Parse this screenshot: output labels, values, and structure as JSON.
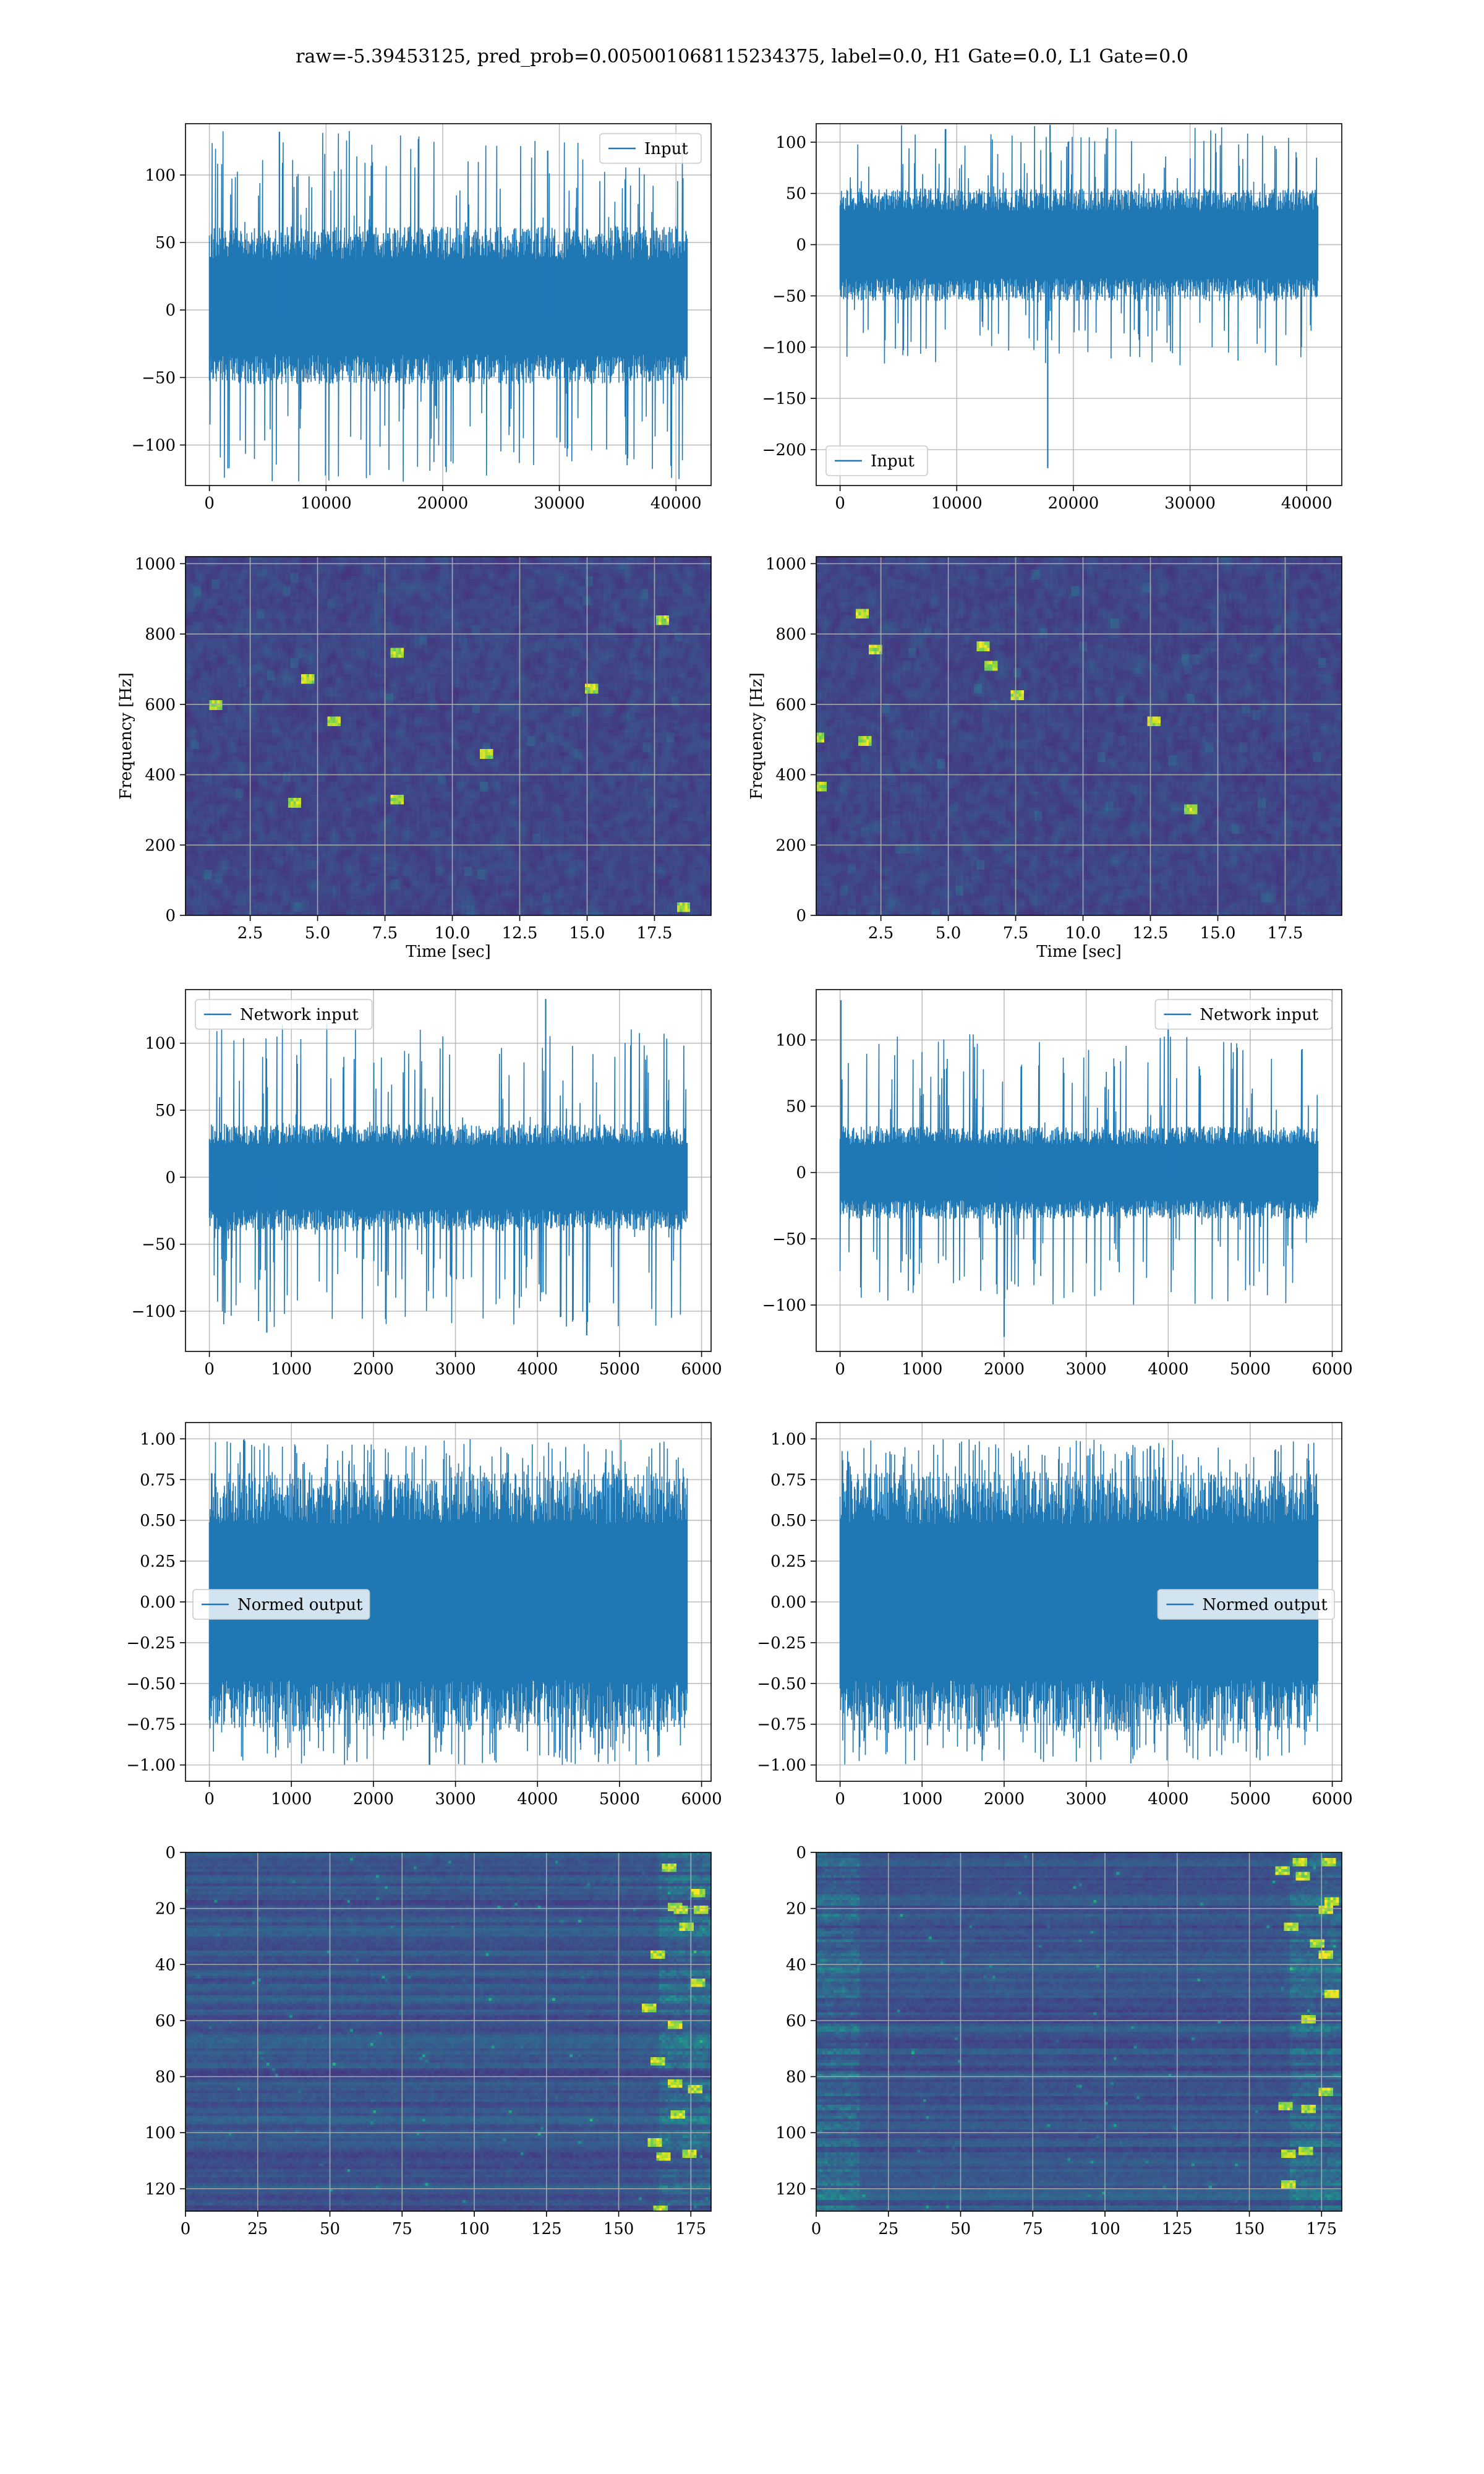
{
  "title": "raw=-5.39453125, pred_prob=0.005001068115234375, label=0.0, H1 Gate=0.0, L1 Gate=0.0",
  "colors": {
    "series": "#1f77b4",
    "grid": "#b0b0b0"
  },
  "chart_data": [
    {
      "id": "ts-h1-input",
      "type": "line",
      "series_name": "Input",
      "legend": "upper right",
      "xlim": [
        -2048,
        43008
      ],
      "ylim": [
        -130,
        138
      ],
      "xticks": [
        0,
        10000,
        20000,
        30000,
        40000
      ],
      "yticks": [
        -100,
        -50,
        0,
        50,
        100
      ],
      "xticklabels": [
        "0",
        "10000",
        "20000",
        "30000",
        "40000"
      ],
      "yticklabels": [
        "−100",
        "−50",
        "0",
        "50",
        "100"
      ],
      "x_range": [
        0,
        40960
      ],
      "core_range": [
        -55,
        62
      ],
      "peak_range": [
        -128,
        133
      ],
      "notable_peaks": [
        {
          "x": 6000,
          "y": 132
        },
        {
          "x": 29000,
          "y": 118
        }
      ],
      "grid": true
    },
    {
      "id": "ts-l1-input",
      "type": "line",
      "series_name": "Input",
      "legend": "lower left",
      "xlim": [
        -2048,
        43008
      ],
      "ylim": [
        -235,
        118
      ],
      "xticks": [
        0,
        10000,
        20000,
        30000,
        40000
      ],
      "yticks": [
        -200,
        -150,
        -100,
        -50,
        0,
        50,
        100
      ],
      "xticklabels": [
        "0",
        "10000",
        "20000",
        "30000",
        "40000"
      ],
      "yticklabels": [
        "−200",
        "−150",
        "−100",
        "−50",
        "0",
        "50",
        "100"
      ],
      "x_range": [
        0,
        40960
      ],
      "core_range": [
        -55,
        55
      ],
      "peak_range": [
        -118,
        118
      ],
      "notable_peaks": [
        {
          "x": 17800,
          "y": -218
        },
        {
          "x": 18000,
          "y": 117
        }
      ],
      "grid": true
    },
    {
      "id": "spec-h1",
      "type": "heatmap",
      "xlim": [
        0.1,
        19.6
      ],
      "ylim": [
        0,
        1020
      ],
      "xticks": [
        2.5,
        5,
        7.5,
        10,
        12.5,
        15,
        17.5
      ],
      "yticks": [
        0,
        200,
        400,
        600,
        800,
        1000
      ],
      "xticklabels": [
        "2.5",
        "5.0",
        "7.5",
        "10.0",
        "12.5",
        "15.0",
        "17.5"
      ],
      "yticklabels": [
        "0",
        "200",
        "400",
        "600",
        "800",
        "1000"
      ],
      "xlabel": "Time [sec]",
      "ylabel": "Frequency [Hz]",
      "colormap": "viridis",
      "grid": true
    },
    {
      "id": "spec-l1",
      "type": "heatmap",
      "xlim": [
        0.1,
        19.6
      ],
      "ylim": [
        0,
        1020
      ],
      "xticks": [
        2.5,
        5,
        7.5,
        10,
        12.5,
        15,
        17.5
      ],
      "yticks": [
        0,
        200,
        400,
        600,
        800,
        1000
      ],
      "xticklabels": [
        "2.5",
        "5.0",
        "7.5",
        "10.0",
        "12.5",
        "15.0",
        "17.5"
      ],
      "yticklabels": [
        "0",
        "200",
        "400",
        "600",
        "800",
        "1000"
      ],
      "xlabel": "Time [sec]",
      "ylabel": "Frequency [Hz]",
      "colormap": "viridis",
      "grid": true
    },
    {
      "id": "ts-h1-net",
      "type": "line",
      "series_name": "Network input",
      "legend": "upper left",
      "xlim": [
        -291,
        6116
      ],
      "ylim": [
        -130,
        140
      ],
      "xticks": [
        0,
        1000,
        2000,
        3000,
        4000,
        5000,
        6000
      ],
      "yticks": [
        -100,
        -50,
        0,
        50,
        100
      ],
      "xticklabels": [
        "0",
        "1000",
        "2000",
        "3000",
        "4000",
        "5000",
        "6000"
      ],
      "yticklabels": [
        "−100",
        "−50",
        "0",
        "50",
        "100"
      ],
      "x_range": [
        0,
        5825
      ],
      "core_range": [
        -40,
        40
      ],
      "peak_range": [
        -112,
        115
      ],
      "notable_peaks": [
        {
          "x": 4100,
          "y": 133
        },
        {
          "x": 4600,
          "y": -118
        },
        {
          "x": 700,
          "y": -116
        }
      ],
      "grid": true
    },
    {
      "id": "ts-l1-net",
      "type": "line",
      "series_name": "Network input",
      "legend": "upper right",
      "xlim": [
        -291,
        6116
      ],
      "ylim": [
        -135,
        138
      ],
      "xticks": [
        0,
        1000,
        2000,
        3000,
        4000,
        5000,
        6000
      ],
      "yticks": [
        -100,
        -50,
        0,
        50,
        100
      ],
      "xticklabels": [
        "0",
        "1000",
        "2000",
        "3000",
        "4000",
        "5000",
        "6000"
      ],
      "yticklabels": [
        "−100",
        "−50",
        "0",
        "50",
        "100"
      ],
      "x_range": [
        0,
        5825
      ],
      "core_range": [
        -35,
        35
      ],
      "peak_range": [
        -100,
        105
      ],
      "notable_peaks": [
        {
          "x": 10,
          "y": 130
        },
        {
          "x": 2000,
          "y": -124
        },
        {
          "x": 4000,
          "y": 113
        }
      ],
      "grid": true
    },
    {
      "id": "ts-h1-norm",
      "type": "line",
      "series_name": "Normed output",
      "legend": "center left",
      "xlim": [
        -291,
        6116
      ],
      "ylim": [
        -1.1,
        1.1
      ],
      "xticks": [
        0,
        1000,
        2000,
        3000,
        4000,
        5000,
        6000
      ],
      "yticks": [
        -1.0,
        -0.75,
        -0.5,
        -0.25,
        0,
        0.25,
        0.5,
        0.75,
        1.0
      ],
      "xticklabels": [
        "0",
        "1000",
        "2000",
        "3000",
        "4000",
        "5000",
        "6000"
      ],
      "yticklabels": [
        "−1.00",
        "−0.75",
        "−0.50",
        "−0.25",
        "0.00",
        "0.25",
        "0.50",
        "0.75",
        "1.00"
      ],
      "x_range": [
        0,
        5825
      ],
      "core_range": [
        -0.8,
        0.8
      ],
      "peak_range": [
        -1.0,
        1.0
      ],
      "grid": true
    },
    {
      "id": "ts-l1-norm",
      "type": "line",
      "series_name": "Normed output",
      "legend": "center right",
      "xlim": [
        -291,
        6116
      ],
      "ylim": [
        -1.1,
        1.1
      ],
      "xticks": [
        0,
        1000,
        2000,
        3000,
        4000,
        5000,
        6000
      ],
      "yticks": [
        -1.0,
        -0.75,
        -0.5,
        -0.25,
        0,
        0.25,
        0.5,
        0.75,
        1.0
      ],
      "xticklabels": [
        "0",
        "1000",
        "2000",
        "3000",
        "4000",
        "5000",
        "6000"
      ],
      "yticklabels": [
        "−1.00",
        "−0.75",
        "−0.50",
        "−0.25",
        "0.00",
        "0.25",
        "0.50",
        "0.75",
        "1.00"
      ],
      "x_range": [
        0,
        5825
      ],
      "core_range": [
        -0.8,
        0.8
      ],
      "peak_range": [
        -1.0,
        1.0
      ],
      "grid": true
    },
    {
      "id": "feat-h1",
      "type": "heatmap",
      "xlim": [
        0,
        182
      ],
      "ylim": [
        128,
        0
      ],
      "xticks": [
        0,
        25,
        50,
        75,
        100,
        125,
        150,
        175
      ],
      "yticks": [
        0,
        20,
        40,
        60,
        80,
        100,
        120
      ],
      "xticklabels": [
        "0",
        "25",
        "50",
        "75",
        "100",
        "125",
        "150",
        "175"
      ],
      "yticklabels": [
        "0",
        "20",
        "40",
        "60",
        "80",
        "100",
        "120"
      ],
      "colormap": "viridis",
      "grid": true
    },
    {
      "id": "feat-l1",
      "type": "heatmap",
      "xlim": [
        0,
        182
      ],
      "ylim": [
        128,
        0
      ],
      "xticks": [
        0,
        25,
        50,
        75,
        100,
        125,
        150,
        175
      ],
      "yticks": [
        0,
        20,
        40,
        60,
        80,
        100,
        120
      ],
      "xticklabels": [
        "0",
        "25",
        "50",
        "75",
        "100",
        "125",
        "150",
        "175"
      ],
      "yticklabels": [
        "0",
        "20",
        "40",
        "60",
        "80",
        "100",
        "120"
      ],
      "colormap": "viridis",
      "grid": true
    }
  ]
}
